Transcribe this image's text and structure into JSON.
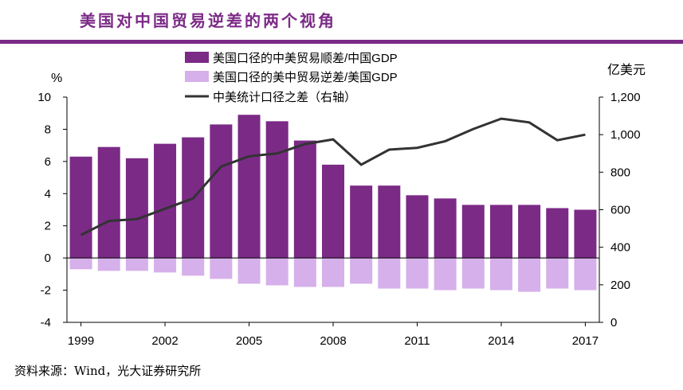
{
  "title": "美国对中国贸易逆差的两个视角",
  "source": "资料来源：Wind，光大证券研究所",
  "chart_data": {
    "type": "bar",
    "left_unit": "%",
    "right_unit": "亿美元",
    "years": [
      1999,
      2000,
      2001,
      2002,
      2003,
      2004,
      2005,
      2006,
      2007,
      2008,
      2009,
      2010,
      2011,
      2012,
      2013,
      2014,
      2015,
      2016,
      2017
    ],
    "x_tick_labels": [
      "1999",
      "2002",
      "2005",
      "2008",
      "2011",
      "2014",
      "2017"
    ],
    "x_tick_years": [
      1999,
      2002,
      2005,
      2008,
      2011,
      2014,
      2017
    ],
    "left_ylim": [
      -4,
      10
    ],
    "left_ticks": [
      "-4",
      "-2",
      "0",
      "2",
      "4",
      "6",
      "8",
      "10"
    ],
    "right_ylim": [
      0,
      1200
    ],
    "right_ticks": [
      "0",
      "200",
      "400",
      "600",
      "800",
      "1,000",
      "1,200"
    ],
    "series": [
      {
        "name": "美国口径的中美贸易顺差/中国GDP",
        "kind": "bar",
        "axis": "left",
        "color": "#7b2a86",
        "values": [
          6.3,
          6.9,
          6.2,
          7.1,
          7.5,
          8.3,
          8.9,
          8.5,
          7.3,
          5.8,
          4.5,
          4.5,
          3.9,
          3.7,
          3.3,
          3.3,
          3.3,
          3.1,
          3.0
        ]
      },
      {
        "name": "美国口径的美中贸易逆差/美国GDP",
        "kind": "bar",
        "axis": "left",
        "color": "#d6b0ea",
        "values": [
          -0.7,
          -0.8,
          -0.8,
          -0.9,
          -1.1,
          -1.3,
          -1.6,
          -1.7,
          -1.8,
          -1.8,
          -1.6,
          -1.9,
          -1.9,
          -2.0,
          -1.9,
          -2.0,
          -2.1,
          -1.9,
          -2.0
        ]
      },
      {
        "name": "中美统计口径之差（右轴）",
        "kind": "line",
        "axis": "right",
        "color": "#333333",
        "values": [
          465,
          540,
          550,
          605,
          660,
          830,
          885,
          900,
          950,
          975,
          840,
          920,
          930,
          965,
          1030,
          1085,
          1065,
          970,
          1000
        ]
      }
    ]
  }
}
